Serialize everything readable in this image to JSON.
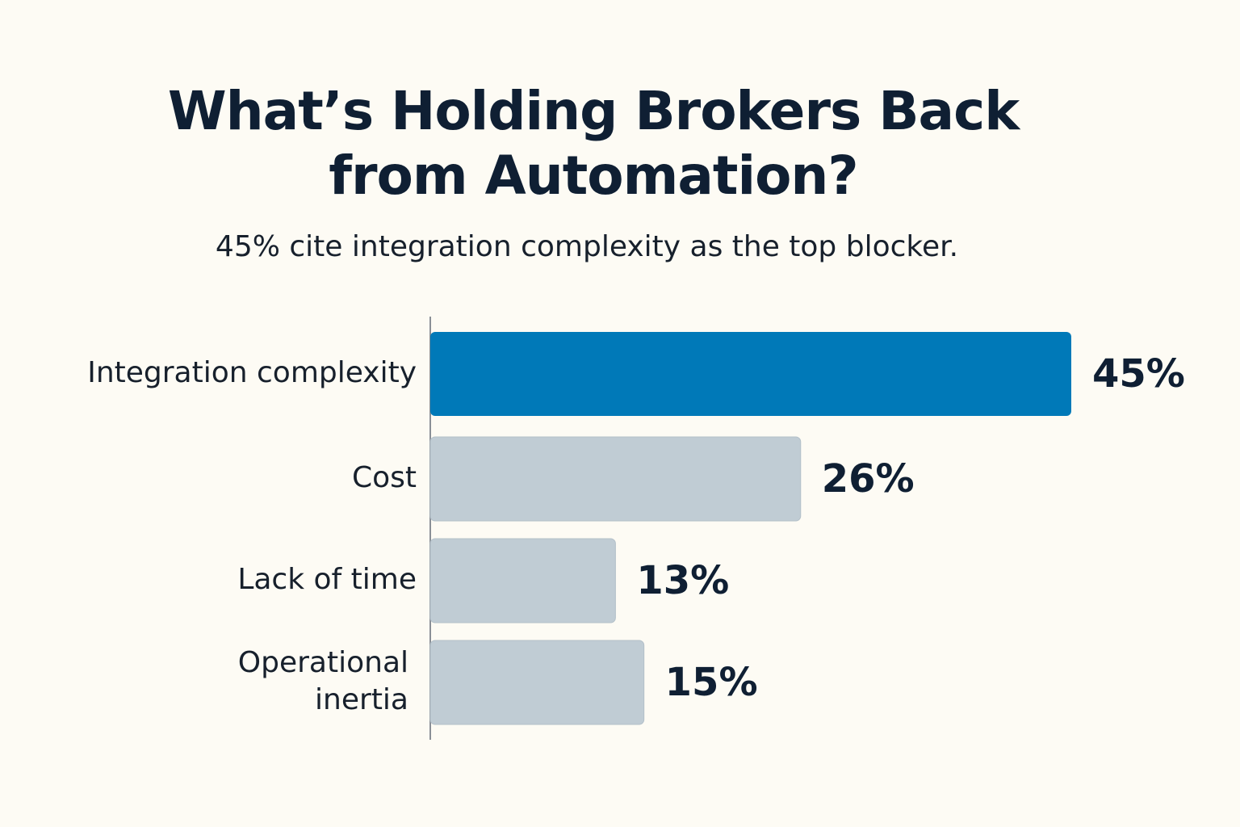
{
  "title": [
    "What’s Holding Brokers Back",
    "from Automation?"
  ],
  "subtitle": "45% cite integration complexity as the top blocker.",
  "colors": {
    "highlight": "#0079b8",
    "bar": "#c0ccd4",
    "bar_stroke": "#b3c0c9",
    "axis": "#8a8f96",
    "text": "#0f1f33"
  },
  "chart_data": {
    "type": "bar",
    "orientation": "horizontal",
    "categories": [
      [
        "Integration complexity"
      ],
      [
        "Cost"
      ],
      [
        "Lack of time"
      ],
      [
        "Operational",
        "inertia"
      ]
    ],
    "values": [
      45,
      26,
      13,
      15
    ],
    "value_labels": [
      "45%",
      "26%",
      "13%",
      "15%"
    ],
    "highlight_index": 0,
    "xlim": [
      0,
      45
    ],
    "grid": false,
    "legend": "none"
  }
}
